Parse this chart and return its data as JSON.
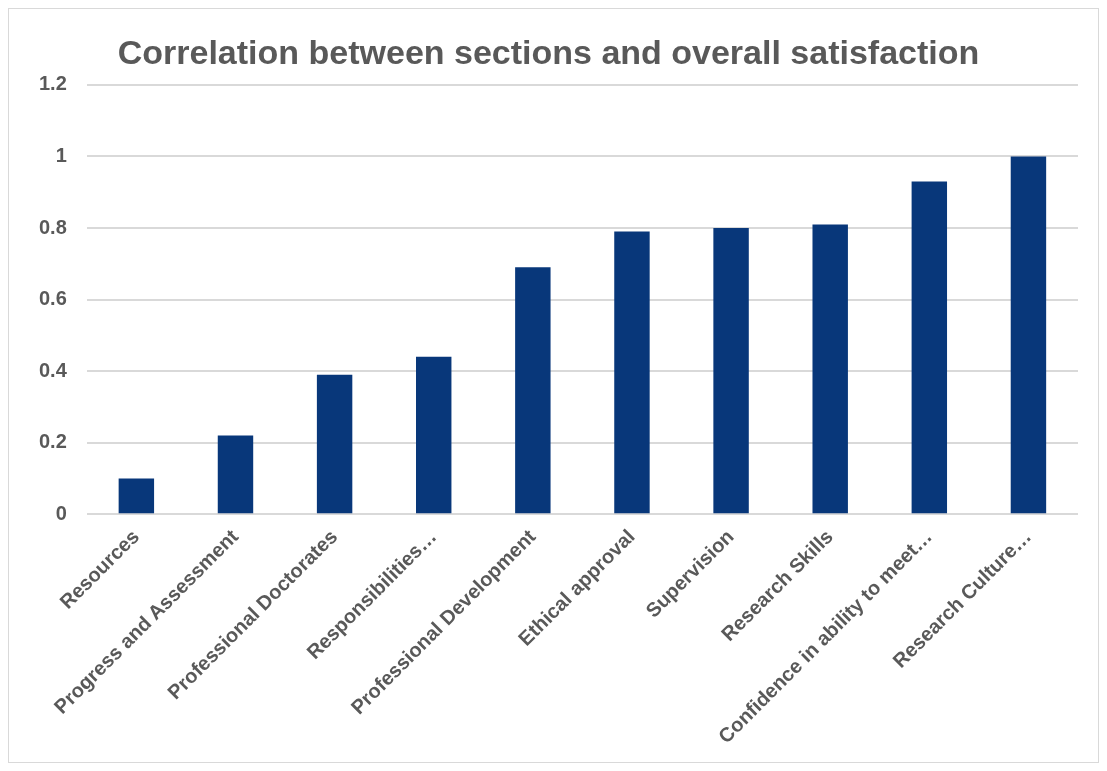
{
  "chart_data": {
    "type": "bar",
    "title": "Correlation between sections and overall satisfaction",
    "categories": [
      "Resources",
      "Progress and Assessment",
      "Professional Doctorates",
      "Responsibilities…",
      "Professional Development",
      "Ethical approval",
      "Supervision",
      "Research Skills",
      "Confidence in ability to meet…",
      "Research Culture…"
    ],
    "values": [
      0.1,
      0.22,
      0.39,
      0.44,
      0.69,
      0.79,
      0.8,
      0.81,
      0.93,
      1.0
    ],
    "color": "#08377a",
    "ylim": [
      0,
      1.2
    ],
    "yticks": [
      0,
      0.2,
      0.4,
      0.6,
      0.8,
      1,
      1.2
    ],
    "grid": "y"
  }
}
